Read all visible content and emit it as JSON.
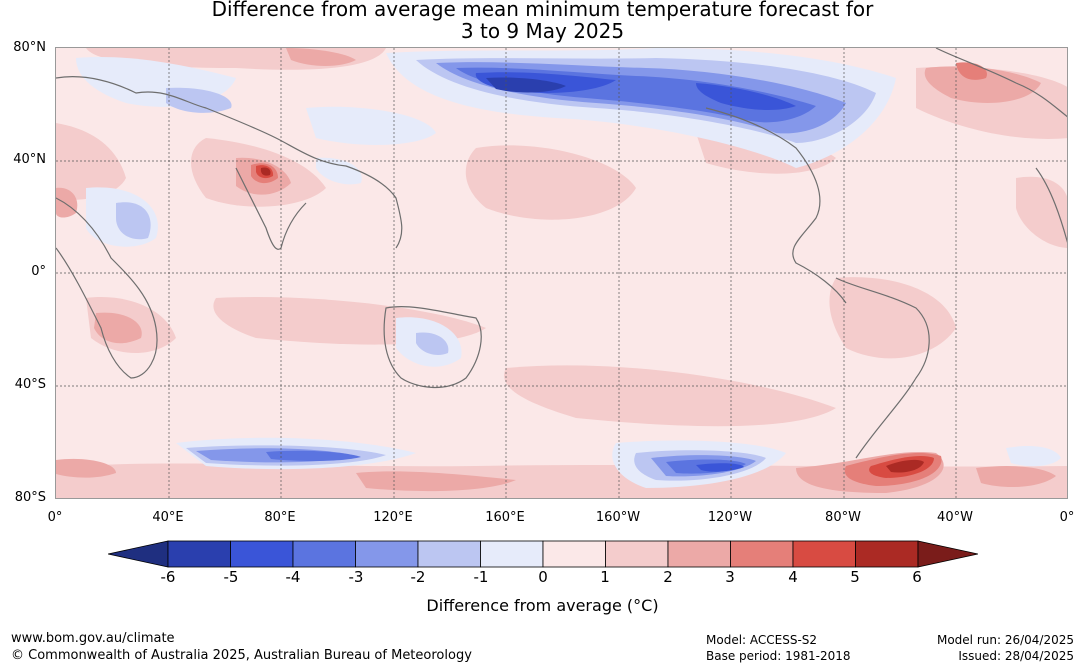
{
  "title": {
    "line1": "Difference from average mean minimum temperature forecast for",
    "line2": "3 to 9 May 2025"
  },
  "map": {
    "lat_labels": [
      "80°N",
      "40°N",
      "0°",
      "40°S",
      "80°S"
    ],
    "lon_labels": [
      "0°",
      "40°E",
      "80°E",
      "120°E",
      "160°E",
      "160°W",
      "120°W",
      "80°W",
      "40°W",
      "0°"
    ]
  },
  "colorbar": {
    "ticks": [
      "-6",
      "-5",
      "-4",
      "-3",
      "-2",
      "-1",
      "0",
      "1",
      "2",
      "3",
      "4",
      "5",
      "6"
    ],
    "colors": [
      "#1f2f80",
      "#2a3fae",
      "#3a55d8",
      "#5b74e0",
      "#8497ea",
      "#bcc6f2",
      "#e6ebfa",
      "#fbe8e8",
      "#f4cccc",
      "#eca9a7",
      "#e57f79",
      "#d84b42",
      "#ab2a24",
      "#7a1c1a"
    ],
    "label": "Difference from average (°C)"
  },
  "footer": {
    "url": "www.bom.gov.au/climate",
    "copyright": "© Commonwealth of Australia 2025, Australian Bureau of Meteorology",
    "model": "Model: ACCESS-S2",
    "base_period": "Base period: 1981-2018",
    "model_run": "Model run: 26/04/2025",
    "issued": "Issued: 28/04/2025"
  }
}
